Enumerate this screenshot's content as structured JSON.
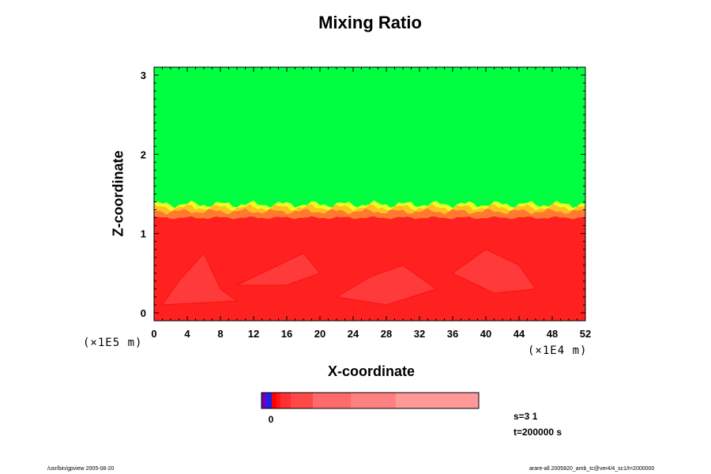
{
  "chart_data": {
    "type": "heatmap",
    "title": "Mixing Ratio",
    "xlabel": "X-coordinate",
    "ylabel": "Z-coordinate",
    "xlim": [
      0,
      52
    ],
    "ylim": [
      -0.1,
      3.1
    ],
    "x_ticks": [
      "0",
      "4",
      "8",
      "12",
      "16",
      "20",
      "24",
      "28",
      "32",
      "36",
      "40",
      "44",
      "48",
      "52"
    ],
    "y_ticks": [
      "0",
      "1",
      "2",
      "3"
    ],
    "x_unit": "(×1E4 m)",
    "y_unit": "(×1E5 m)",
    "field": {
      "upper_region_color": "#00ff40",
      "lower_region_color": "#ff2020",
      "interface_height_approx": 1.3
    },
    "colorbar": {
      "label": "0",
      "colors": [
        "#7000c0",
        "#2020e0",
        "#ff0000",
        "#ff1818",
        "#ff3030",
        "#ff4848",
        "#ff6a6a",
        "#ff8080",
        "#ff9898"
      ]
    }
  },
  "info": {
    "s_label": "s=3 1",
    "t_label": "t=200000 s"
  },
  "footer": {
    "left": "/usr/bin/gpview 2005-08-20",
    "right": "arare-all.2005820_amb_tc@ver4/4_sc1/t=2000000"
  }
}
